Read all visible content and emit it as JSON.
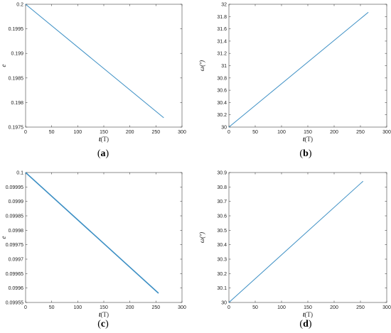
{
  "chart_data": [
    {
      "id": "a",
      "type": "line",
      "caption_letter": "a",
      "xlabel_italic": "t",
      "xlabel_unit": "(T)",
      "ylabel": "e",
      "xlim": [
        0,
        300
      ],
      "ylim": [
        0.1975,
        0.2
      ],
      "xticks": [
        0,
        50,
        100,
        150,
        200,
        250,
        300
      ],
      "yticks": [
        0.1975,
        0.198,
        0.1985,
        0.199,
        0.1995,
        0.2
      ],
      "xtick_labels": [
        "0",
        "50",
        "100",
        "150",
        "200",
        "250",
        "300"
      ],
      "ytick_labels": [
        "0.1975",
        "0.198",
        "0.1985",
        "0.199",
        "0.1995",
        "0.2"
      ],
      "series": [
        {
          "x": [
            0,
            265
          ],
          "y": [
            0.2,
            0.19769
          ]
        }
      ],
      "line_color": "#3c8fc4"
    },
    {
      "id": "b",
      "type": "line",
      "caption_letter": "b",
      "xlabel_italic": "t",
      "xlabel_unit": "(T)",
      "ylabel": "ω(º)",
      "xlim": [
        0,
        300
      ],
      "ylim": [
        30,
        32
      ],
      "xticks": [
        0,
        50,
        100,
        150,
        200,
        250,
        300
      ],
      "yticks": [
        30,
        30.2,
        30.4,
        30.6,
        30.8,
        31,
        31.2,
        31.4,
        31.6,
        31.8,
        32
      ],
      "xtick_labels": [
        "0",
        "50",
        "100",
        "150",
        "200",
        "250",
        "300"
      ],
      "ytick_labels": [
        "30",
        "30.2",
        "30.4",
        "30.6",
        "30.8",
        "31",
        "31.2",
        "31.4",
        "31.6",
        "31.8",
        "32"
      ],
      "series": [
        {
          "x": [
            0,
            265
          ],
          "y": [
            30,
            31.87
          ]
        }
      ],
      "line_color": "#3c8fc4"
    },
    {
      "id": "c",
      "type": "line",
      "caption_letter": "c",
      "xlabel_italic": "t",
      "xlabel_unit": "(T)",
      "ylabel": "e",
      "xlim": [
        0,
        300
      ],
      "ylim": [
        0.09955,
        0.1
      ],
      "xticks": [
        0,
        50,
        100,
        150,
        200,
        250,
        300
      ],
      "yticks": [
        0.09955,
        0.0996,
        0.09965,
        0.0997,
        0.09975,
        0.0998,
        0.09985,
        0.0999,
        0.09995,
        0.1
      ],
      "xtick_labels": [
        "0",
        "50",
        "100",
        "150",
        "200",
        "250",
        "300"
      ],
      "ytick_labels": [
        "0.09955",
        "0.0996",
        "0.09965",
        "0.0997",
        "0.09975",
        "0.0998",
        "0.09985",
        "0.0999",
        "0.09995",
        "0.1"
      ],
      "series": [
        {
          "x": [
            0,
            255
          ],
          "y": [
            0.1,
            0.099582
          ]
        }
      ],
      "line_color": "#3c8fc4"
    },
    {
      "id": "d",
      "type": "line",
      "caption_letter": "d",
      "xlabel_italic": "t",
      "xlabel_unit": "(T)",
      "ylabel": "ω(º)",
      "xlim": [
        0,
        300
      ],
      "ylim": [
        30,
        30.9
      ],
      "xticks": [
        0,
        50,
        100,
        150,
        200,
        250,
        300
      ],
      "yticks": [
        30,
        30.1,
        30.2,
        30.3,
        30.4,
        30.5,
        30.6,
        30.7,
        30.8,
        30.9
      ],
      "xtick_labels": [
        "0",
        "50",
        "100",
        "150",
        "200",
        "250",
        "300"
      ],
      "ytick_labels": [
        "30",
        "30.1",
        "30.2",
        "30.3",
        "30.4",
        "30.5",
        "30.6",
        "30.7",
        "30.8",
        "30.9"
      ],
      "series": [
        {
          "x": [
            0,
            255
          ],
          "y": [
            30,
            30.84
          ]
        }
      ],
      "line_color": "#3c8fc4"
    }
  ]
}
